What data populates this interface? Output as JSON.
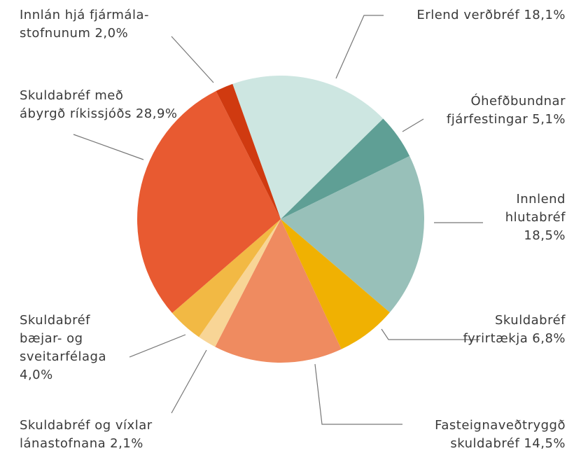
{
  "chart_data": {
    "type": "pie",
    "categories": [
      [
        "Erlend verðbréf"
      ],
      [
        "Óhefðbundnar",
        "fjárfestingar"
      ],
      [
        "Innlend",
        "hlutabréf"
      ],
      [
        "Skuldabréf",
        "fyrirtækja"
      ],
      [
        "Fasteignaveðtryggð",
        "skuldabréf"
      ],
      [
        "Skuldabréf og víxlar",
        "lánastofnana"
      ],
      [
        "Skuldabréf",
        "bæjar- og",
        "sveitarfélaga"
      ],
      [
        "Skuldabréf með",
        "ábyrgð ríkissjóðs"
      ],
      [
        "Innlán hjá fjármála-",
        "stofnunum"
      ]
    ],
    "values": [
      18.1,
      5.1,
      18.5,
      6.8,
      14.5,
      2.1,
      4.0,
      28.9,
      2.0
    ],
    "value_labels": [
      "18,1%",
      "5,1%",
      "18,5%",
      "6,8%",
      "14,5%",
      "2,1%",
      "4,0%",
      "28,9%",
      "2,0%"
    ],
    "colors": [
      "#cde6e1",
      "#5f9f95",
      "#98c0b9",
      "#f0b102",
      "#ef8b60",
      "#f8d596",
      "#f2b944",
      "#e85a31",
      "#d03a10"
    ]
  }
}
